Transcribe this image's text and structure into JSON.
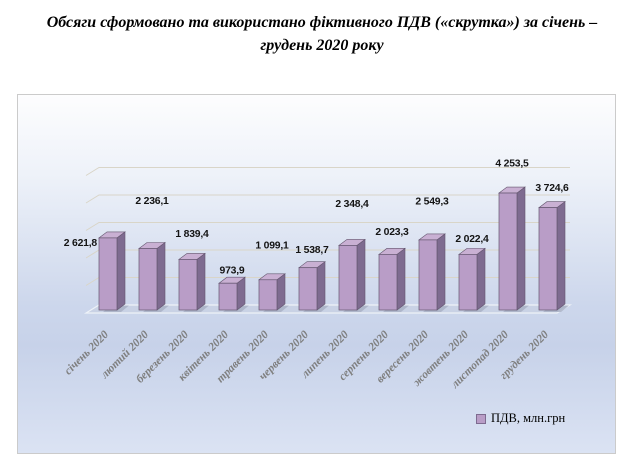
{
  "title": {
    "line1": "Обсяги сформовано та використано фіктивного ПДВ («скрутка») за січень –",
    "line2": "грудень 2020 року"
  },
  "chart_data": {
    "type": "bar",
    "title": "Обсяги сформовано та використано фіктивного ПДВ («скрутка») за січень – грудень 2020 року",
    "categories": [
      "січень 2020",
      "лютий 2020",
      "березень 2020",
      "квітень 2020",
      "травень 2020",
      "червень 2020",
      "липень 2020",
      "серпень 2020",
      "вересень 2020",
      "жовтень 2020",
      "листопад 2020",
      "грудень 2020"
    ],
    "values": [
      2621.8,
      2236.1,
      1839.4,
      973.9,
      1099.1,
      1538.7,
      2348.4,
      2023.3,
      2549.3,
      2022.4,
      4253.5,
      3724.6
    ],
    "value_labels": [
      "2 621,8",
      "2 236,1",
      "1 839,4",
      "973,9",
      "1 099,1",
      "1 538,7",
      "2 348,4",
      "2 023,3",
      "2 549,3",
      "2 022,4",
      "4 253,5",
      "3 724,6"
    ],
    "legend": "ПДВ, млн.грн",
    "legend_position": "bottom-right",
    "xlabel": "",
    "ylabel": "",
    "ylim": [
      0,
      5000
    ],
    "grid_step": 1000,
    "grid": true,
    "style": "3d-bars",
    "colors": {
      "bar_front": "#b99dc7",
      "bar_side": "#7e6b90",
      "bar_top": "#c9b0d3",
      "bar_border": "#64566f",
      "grid": "#d9d5c8",
      "floor": "#c9d2e5",
      "floor_edge": "#eef2f8",
      "shadow": "#a9b2c6",
      "value_text": "#141414",
      "axis_text": "#7f7f7f",
      "bg_top": "#fdfdfe",
      "bg_bottom": "#dbe3f3"
    }
  }
}
